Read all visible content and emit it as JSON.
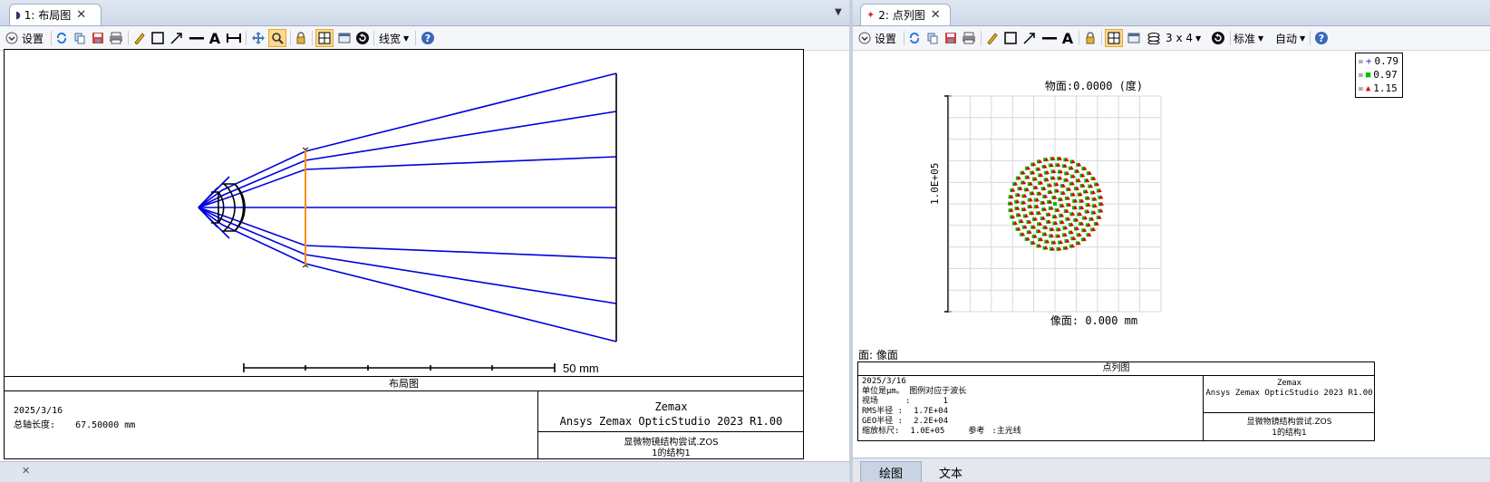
{
  "left": {
    "tab": {
      "label": "1: 布局图"
    },
    "toolbar": {
      "settings_label": "设置",
      "linewidth_label": "线宽"
    },
    "scale_label": "50 mm",
    "footer": {
      "title": "布局图",
      "date": "2025/3/16",
      "total_length_label": "总轴长度:",
      "total_length_value": "67.50000 mm",
      "company": "Zemax",
      "product": "Ansys Zemax OpticStudio 2023 R1.00",
      "file": "显微物镜结构尝试.ZOS",
      "config": "1的结构1"
    }
  },
  "right": {
    "tab": {
      "label": "2: 点列图"
    },
    "toolbar": {
      "settings_label": "设置",
      "grid_label": "3 x 4",
      "standard_label": "标准",
      "auto_label": "自动"
    },
    "legend": [
      {
        "value": "0.79",
        "color": "#3030ff",
        "symbol": "+"
      },
      {
        "value": "0.97",
        "color": "#00c000",
        "symbol": "■"
      },
      {
        "value": "1.15",
        "color": "#e00000",
        "symbol": "▲"
      }
    ],
    "plot": {
      "title": "物面:0.0000 (度)",
      "ylabel": "1.0E+05",
      "xlabel": "像面: 0.000 mm"
    },
    "surface_label": "面: 像面",
    "footer": {
      "title": "点列图",
      "date": "2025/3/16",
      "unit_line": "单位是μm。 图例对应于波长",
      "field_label": "视场",
      "field_sep": ":",
      "field_value": "1",
      "rms_label": "RMS半径 :",
      "rms_value": "1.7E+04",
      "geo_label": "GEO半径 :",
      "geo_value": "2.2E+04",
      "scale_label": "缩放标尺:",
      "scale_value": "1.0E+05",
      "ref_label": "参考",
      "ref_value": ":主光线",
      "company": "Zemax",
      "product": "Ansys Zemax OpticStudio 2023 R1.00",
      "file": "显微物镜结构尝试.ZOS",
      "config": "1的结构1"
    },
    "bottom_tabs": [
      "绘图",
      "文本"
    ]
  },
  "colors": {
    "ray": "#0000dd",
    "stop": "#ff8c00",
    "accent": "#fcd98c"
  }
}
